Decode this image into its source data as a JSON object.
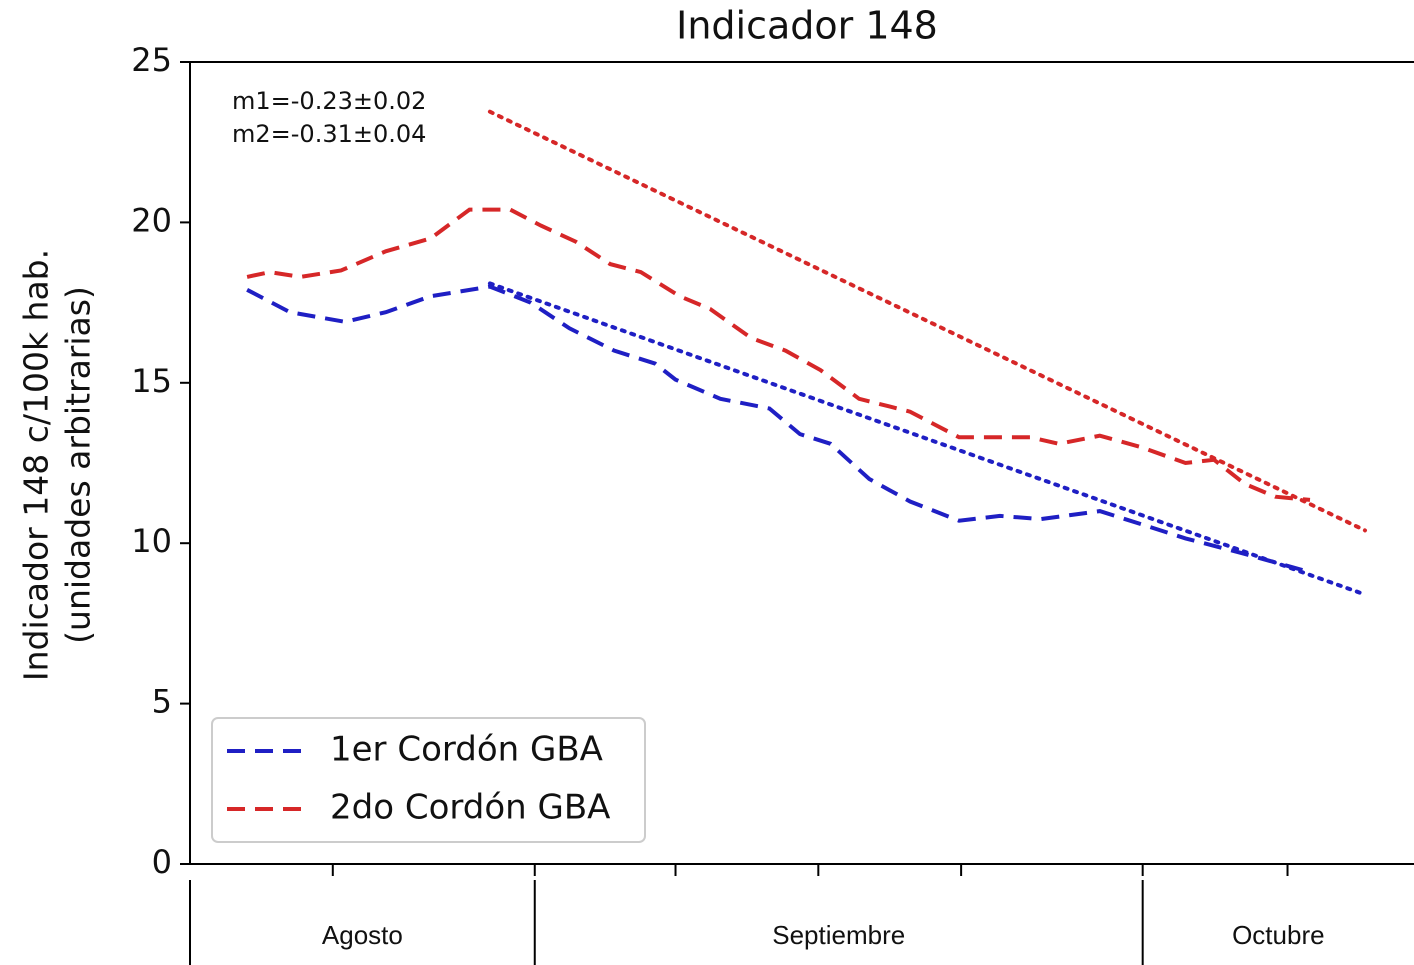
{
  "chart_data": {
    "type": "line",
    "title": "Indicador 148",
    "ylabel": [
      "Indicador 148 c/100k hab.",
      "(unidades arbitrarias)"
    ],
    "annotations": [
      "m1=-0.23±0.02",
      "m2=-0.31±0.04"
    ],
    "ylim": [
      0,
      25
    ],
    "yticks": [
      0,
      5,
      10,
      15,
      20,
      25
    ],
    "xlim": [
      0,
      60
    ],
    "xticks": [
      7.0,
      16.9,
      23.8,
      30.8,
      37.8,
      46.7,
      53.8
    ],
    "months": [
      {
        "label": "Agosto",
        "start": 0,
        "end": 16.9
      },
      {
        "label": "Septiembre",
        "start": 16.9,
        "end": 46.7
      },
      {
        "label": "Octubre",
        "start": 46.7,
        "end": 60
      }
    ],
    "legend": "lower left",
    "series": [
      {
        "name": "1er Cordón GBA",
        "color": "#1f1fc4",
        "x": [
          2.8,
          4.9,
          7.6,
          9.6,
          11.8,
          14.7,
          16.7,
          18.6,
          20.8,
          22.8,
          23.8,
          26.0,
          28.4,
          29.9,
          31.4,
          33.3,
          35.3,
          37.7,
          39.7,
          41.7,
          44.6,
          46.6,
          48.8,
          51.5,
          54.9
        ],
        "values": [
          17.9,
          17.2,
          16.9,
          17.2,
          17.7,
          18.0,
          17.5,
          16.7,
          16.0,
          15.6,
          15.1,
          14.5,
          14.2,
          13.4,
          13.1,
          12.0,
          11.3,
          10.7,
          10.85,
          10.75,
          11.0,
          10.6,
          10.15,
          9.7,
          9.1
        ]
      },
      {
        "name": "2do Cordón GBA",
        "color": "#d62728",
        "x": [
          2.8,
          3.9,
          5.4,
          7.4,
          9.6,
          11.8,
          13.7,
          15.7,
          17.2,
          18.9,
          20.6,
          22.1,
          24.0,
          25.5,
          27.5,
          29.2,
          30.9,
          32.8,
          35.3,
          37.7,
          39.7,
          41.2,
          42.6,
          44.6,
          46.6,
          48.8,
          50.2,
          51.7,
          53.2,
          54.9
        ],
        "values": [
          18.3,
          18.45,
          18.3,
          18.5,
          19.1,
          19.5,
          20.4,
          20.4,
          19.9,
          19.4,
          18.7,
          18.45,
          17.7,
          17.3,
          16.4,
          16.0,
          15.4,
          14.5,
          14.1,
          13.3,
          13.3,
          13.3,
          13.1,
          13.35,
          13.0,
          12.5,
          12.6,
          11.85,
          11.45,
          11.35
        ]
      }
    ],
    "fit_lines": [
      {
        "color": "#1f1fc4",
        "x": [
          14.7,
          57.6
        ],
        "values": [
          18.1,
          8.4
        ]
      },
      {
        "color": "#d62728",
        "x": [
          14.7,
          57.6
        ],
        "values": [
          23.45,
          10.4
        ]
      }
    ]
  }
}
